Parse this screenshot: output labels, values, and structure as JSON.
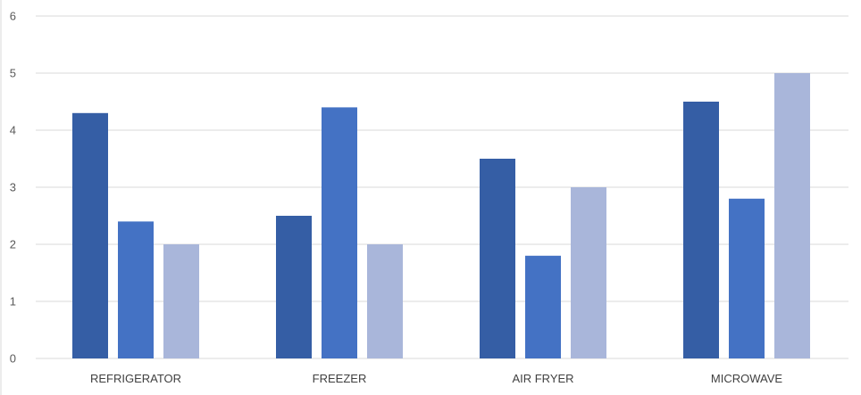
{
  "chart_data": {
    "type": "bar",
    "categories": [
      "REFRIGERATOR",
      "FREEZER",
      "AIR FRYER",
      "MICROWAVE"
    ],
    "series": [
      {
        "values": [
          4.3,
          2.5,
          3.5,
          4.5
        ],
        "color": "#355EA5"
      },
      {
        "values": [
          2.4,
          4.4,
          1.8,
          2.8
        ],
        "color": "#4472C4"
      },
      {
        "values": [
          2.0,
          2.0,
          3.0,
          5.0
        ],
        "color": "#A9B6DA"
      }
    ],
    "yticks": [
      "0",
      "1",
      "2",
      "3",
      "4",
      "5",
      "6"
    ],
    "ylim": [
      0,
      6
    ],
    "grid": true,
    "legend": "none",
    "title": "",
    "xlabel": "",
    "ylabel": ""
  }
}
